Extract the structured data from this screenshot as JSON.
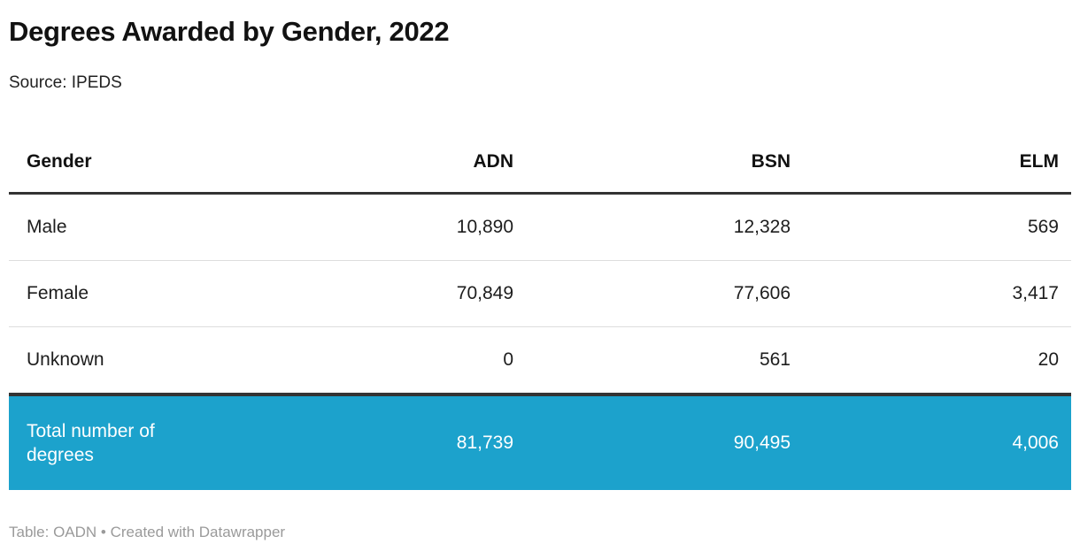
{
  "header": {
    "title": "Degrees Awarded by Gender, 2022",
    "source_line": "Source: IPEDS"
  },
  "table": {
    "columns": [
      "Gender",
      "ADN",
      "BSN",
      "ELM"
    ],
    "rows": [
      {
        "label": "Male",
        "values": [
          "10,890",
          "12,328",
          "569"
        ]
      },
      {
        "label": "Female",
        "values": [
          "70,849",
          "77,606",
          "3,417"
        ]
      },
      {
        "label": "Unknown",
        "values": [
          "0",
          "561",
          "20"
        ]
      }
    ],
    "total_row": {
      "label": "Total number of degrees",
      "values": [
        "81,739",
        "90,495",
        "4,006"
      ]
    }
  },
  "footer": {
    "text": "Table: OADN • Created with Datawrapper"
  },
  "colors": {
    "total_row_background": "#1CA2CC",
    "total_row_text": "#FFFFFF",
    "header_border": "#333333",
    "row_divider": "#DDDDDD",
    "footer_text": "#9A9A9A"
  },
  "chart_data": {
    "type": "table",
    "title": "Degrees Awarded by Gender, 2022",
    "source": "IPEDS",
    "columns": [
      "Gender",
      "ADN",
      "BSN",
      "ELM"
    ],
    "rows": [
      [
        "Male",
        10890,
        12328,
        569
      ],
      [
        "Female",
        70849,
        77606,
        3417
      ],
      [
        "Unknown",
        0,
        561,
        20
      ],
      [
        "Total number of degrees",
        81739,
        90495,
        4006
      ]
    ],
    "footer": "Table: OADN • Created with Datawrapper",
    "layout": {
      "total_row_highlighted": true,
      "numeric_alignment": "right"
    }
  }
}
